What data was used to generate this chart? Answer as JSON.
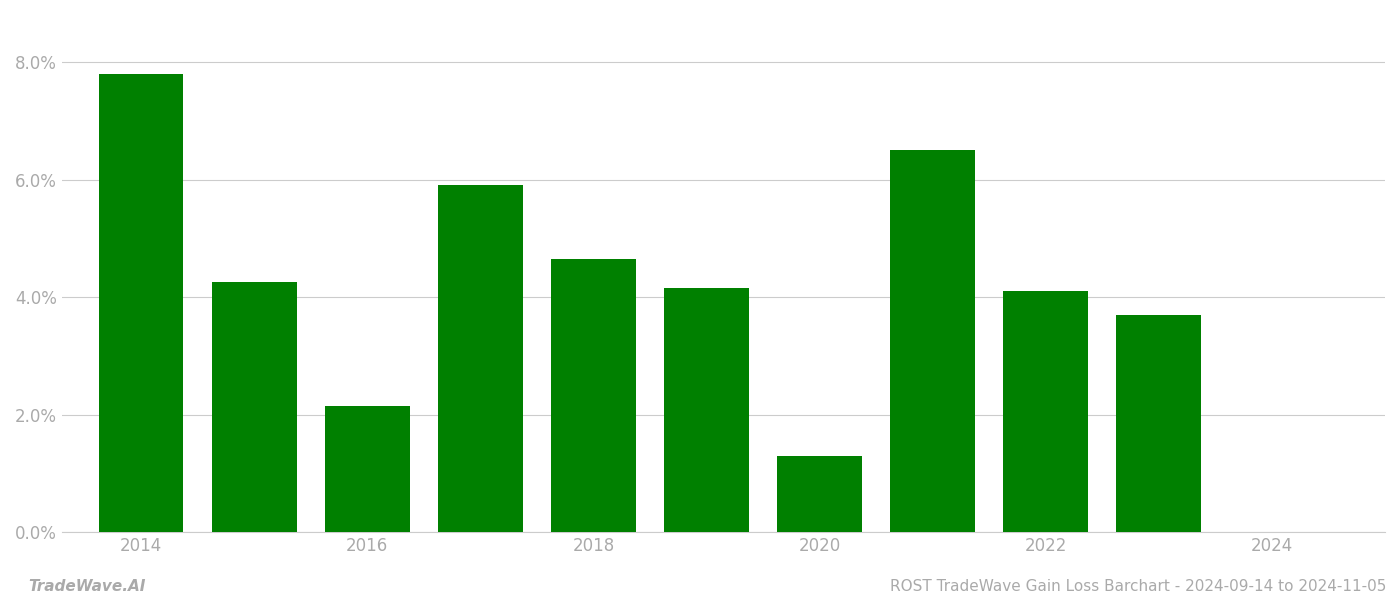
{
  "years": [
    2014,
    2015,
    2016,
    2017,
    2018,
    2019,
    2020,
    2021,
    2022,
    2023
  ],
  "values": [
    0.078,
    0.0425,
    0.0215,
    0.059,
    0.0465,
    0.0415,
    0.013,
    0.065,
    0.041,
    0.037
  ],
  "bar_color": "#008000",
  "background_color": "#ffffff",
  "ylim": [
    0,
    0.088
  ],
  "yticks": [
    0.0,
    0.02,
    0.04,
    0.06,
    0.08
  ],
  "xlabel": "",
  "ylabel": "",
  "title": "",
  "footer_left": "TradeWave.AI",
  "footer_right": "ROST TradeWave Gain Loss Barchart - 2024-09-14 to 2024-11-05",
  "footer_fontsize": 11,
  "grid_color": "#cccccc",
  "tick_label_color": "#aaaaaa",
  "bar_width": 0.75,
  "xlim_left": 2013.3,
  "xlim_right": 2025.0
}
